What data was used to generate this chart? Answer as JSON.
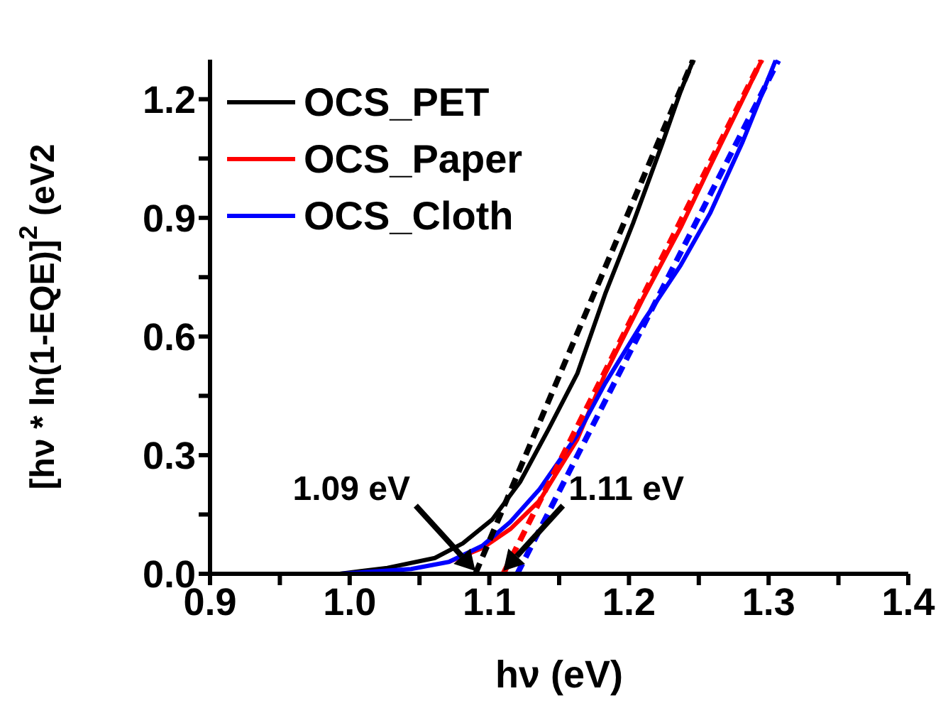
{
  "chart_data": {
    "type": "line",
    "xlabel": "hν (eV)",
    "ylabel": "[hν * ln(1-EQE)]$^{2}$ (eV2",
    "xlim": [
      0.9,
      1.4
    ],
    "ylim": [
      0,
      1.3
    ],
    "xticks": [
      0.9,
      {
        "value": 0.95,
        "label": null
      },
      {
        "value": 1.0,
        "label": "1.0"
      },
      {
        "value": 1.05,
        "label": null
      },
      1.1,
      {
        "value": 1.15,
        "label": null
      },
      1.2,
      {
        "value": 1.25,
        "label": null
      },
      1.3,
      {
        "value": 1.35,
        "label": null
      },
      1.4
    ],
    "yticks": [
      {
        "value": 0,
        "label": "0.0"
      },
      {
        "value": 0.15,
        "label": null
      },
      0.3,
      {
        "value": 0.45,
        "label": null
      },
      0.6,
      {
        "value": 0.75,
        "label": null
      },
      0.9,
      {
        "value": 1.05,
        "label": null
      },
      1.2
    ],
    "grid": false,
    "legend": "top left",
    "marker": "none",
    "series": [
      {
        "name": "OCS_PET",
        "color": "#000000",
        "line_style": "solid",
        "x": [
          0.9,
          0.993,
          1.027,
          1.061,
          1.081,
          1.102,
          1.122,
          1.142,
          1.163,
          1.183,
          1.203,
          1.224,
          1.237,
          1.246
        ],
        "values": [
          0,
          0,
          0.015,
          0.04,
          0.077,
          0.137,
          0.232,
          0.363,
          0.506,
          0.708,
          0.887,
          1.089,
          1.22,
          1.298
        ]
      },
      {
        "name": "OCS_Paper",
        "color": "#ff0000",
        "line_style": "solid",
        "x": [
          1.071,
          1.095,
          1.115,
          1.136,
          1.163,
          1.183,
          1.21,
          1.237,
          1.258,
          1.281,
          1.295
        ],
        "values": [
          0.03,
          0.065,
          0.113,
          0.185,
          0.34,
          0.506,
          0.696,
          0.875,
          1.03,
          1.196,
          1.298
        ]
      },
      {
        "name": "OCS_Cloth",
        "color": "#0000ff",
        "line_style": "solid",
        "x": [
          0.9,
          0.993,
          1.044,
          1.071,
          1.095,
          1.115,
          1.136,
          1.163,
          1.183,
          1.21,
          1.237,
          1.258,
          1.281,
          1.305
        ],
        "values": [
          0,
          0,
          0.012,
          0.03,
          0.071,
          0.131,
          0.214,
          0.351,
          0.482,
          0.637,
          0.78,
          0.911,
          1.089,
          1.298
        ]
      },
      {
        "color": "#000000",
        "line_style": "dashed",
        "x": [
          1.09,
          1.246
        ],
        "values": [
          0,
          1.3
        ]
      },
      {
        "color": "#ff0000",
        "line_style": "dashed",
        "x": [
          1.11,
          1.295
        ],
        "values": [
          0,
          1.3
        ]
      },
      {
        "color": "#0000ff",
        "line_style": "dashed",
        "x": [
          1.12,
          1.307
        ],
        "values": [
          0,
          1.298
        ]
      }
    ],
    "annotations": [
      {
        "text": "1.09 eV",
        "x": 1.09,
        "y": 0
      },
      {
        "text": "1.11 eV",
        "x": 1.11,
        "y": 0
      }
    ]
  }
}
